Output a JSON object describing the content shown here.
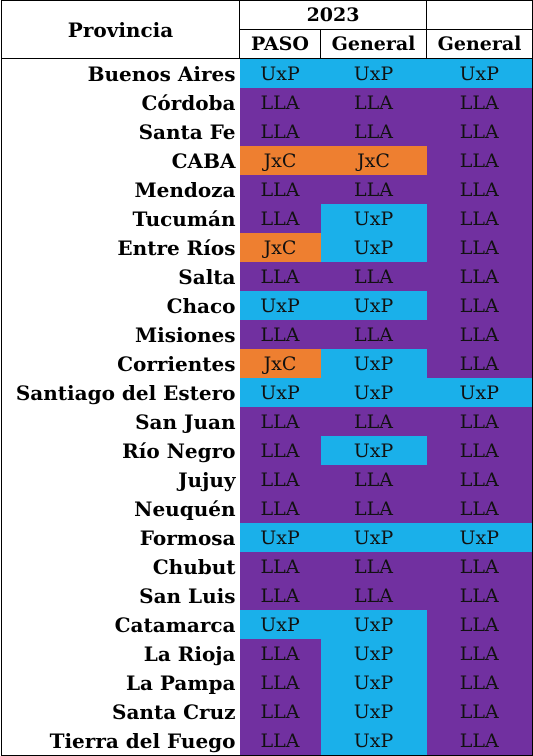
{
  "header": {
    "provincia": "Provincia",
    "year": "2023",
    "columns": [
      "PASO",
      "General",
      "General"
    ]
  },
  "colors": {
    "UxP": "#1ab0ea",
    "LLA": "#7130a0",
    "JxC": "#ee7f30"
  },
  "rows": [
    {
      "name": "Buenos Aires",
      "values": [
        "UxP",
        "UxP",
        "UxP"
      ]
    },
    {
      "name": "Córdoba",
      "values": [
        "LLA",
        "LLA",
        "LLA"
      ]
    },
    {
      "name": "Santa Fe",
      "values": [
        "LLA",
        "LLA",
        "LLA"
      ]
    },
    {
      "name": "CABA",
      "values": [
        "JxC",
        "JxC",
        "LLA"
      ]
    },
    {
      "name": "Mendoza",
      "values": [
        "LLA",
        "LLA",
        "LLA"
      ]
    },
    {
      "name": "Tucumán",
      "values": [
        "LLA",
        "UxP",
        "LLA"
      ]
    },
    {
      "name": "Entre Ríos",
      "values": [
        "JxC",
        "UxP",
        "LLA"
      ]
    },
    {
      "name": "Salta",
      "values": [
        "LLA",
        "LLA",
        "LLA"
      ]
    },
    {
      "name": "Chaco",
      "values": [
        "UxP",
        "UxP",
        "LLA"
      ]
    },
    {
      "name": "Misiones",
      "values": [
        "LLA",
        "LLA",
        "LLA"
      ]
    },
    {
      "name": "Corrientes",
      "values": [
        "JxC",
        "UxP",
        "LLA"
      ]
    },
    {
      "name": "Santiago del Estero",
      "values": [
        "UxP",
        "UxP",
        "UxP"
      ]
    },
    {
      "name": "San Juan",
      "values": [
        "LLA",
        "LLA",
        "LLA"
      ]
    },
    {
      "name": "Río Negro",
      "values": [
        "LLA",
        "UxP",
        "LLA"
      ]
    },
    {
      "name": "Jujuy",
      "values": [
        "LLA",
        "LLA",
        "LLA"
      ]
    },
    {
      "name": "Neuquén",
      "values": [
        "LLA",
        "LLA",
        "LLA"
      ]
    },
    {
      "name": "Formosa",
      "values": [
        "UxP",
        "UxP",
        "UxP"
      ]
    },
    {
      "name": "Chubut",
      "values": [
        "LLA",
        "LLA",
        "LLA"
      ]
    },
    {
      "name": "San Luis",
      "values": [
        "LLA",
        "LLA",
        "LLA"
      ]
    },
    {
      "name": "Catamarca",
      "values": [
        "UxP",
        "UxP",
        "LLA"
      ]
    },
    {
      "name": "La Rioja",
      "values": [
        "LLA",
        "UxP",
        "LLA"
      ]
    },
    {
      "name": "La Pampa",
      "values": [
        "LLA",
        "UxP",
        "LLA"
      ]
    },
    {
      "name": "Santa Cruz",
      "values": [
        "LLA",
        "UxP",
        "LLA"
      ]
    },
    {
      "name": "Tierra del Fuego",
      "values": [
        "LLA",
        "UxP",
        "LLA"
      ]
    }
  ]
}
